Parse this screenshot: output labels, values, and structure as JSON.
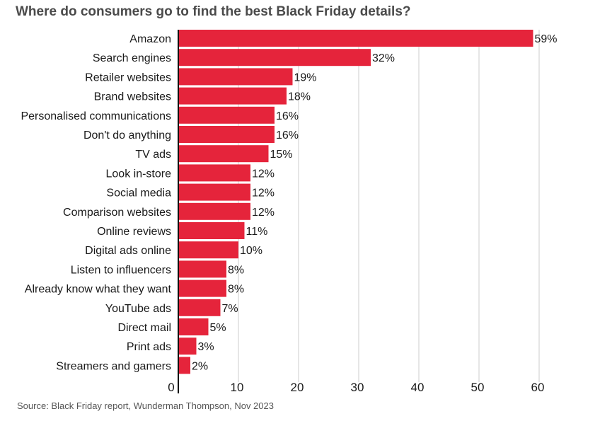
{
  "chart_data": {
    "type": "bar",
    "orientation": "horizontal",
    "title": "Where do consumers go to find the best Black Friday details?",
    "source": "Source: Black Friday report, Wunderman Thompson, Nov 2023",
    "xlabel": "",
    "ylabel": "",
    "value_suffix": "%",
    "xlim": [
      0,
      60
    ],
    "xticks": [
      0,
      10,
      20,
      30,
      40,
      50,
      60
    ],
    "grid": true,
    "legend": "none",
    "bar_color": "#e5243b",
    "categories": [
      "Amazon",
      "Search engines",
      "Retailer websites",
      "Brand websites",
      "Personalised communications",
      "Don't do anything",
      "TV ads",
      "Look in-store",
      "Social media",
      "Comparison websites",
      "Online reviews",
      "Digital ads online",
      "Listen to influencers",
      "Already know what they want",
      "YouTube ads",
      "Direct mail",
      "Print ads",
      "Streamers and gamers"
    ],
    "values": [
      59,
      32,
      19,
      18,
      16,
      16,
      15,
      12,
      12,
      12,
      11,
      10,
      8,
      8,
      7,
      5,
      3,
      2
    ]
  }
}
